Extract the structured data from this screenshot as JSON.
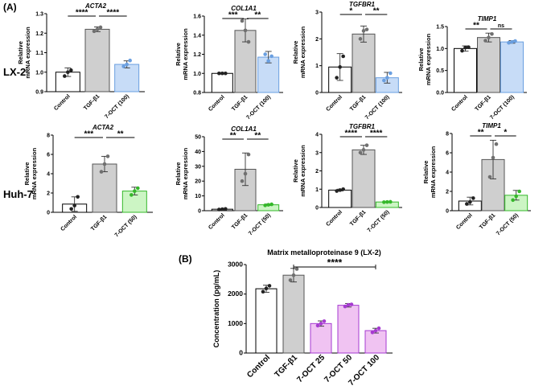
{
  "colors": {
    "control": "#ffffff",
    "tgf": "#cfcfcf",
    "lx2_treat": "#c7dcf7",
    "lx2_treat_edge": "#6a9fe0",
    "huh7_treat": "#ccf5c4",
    "huh7_treat_edge": "#35b82a",
    "mmp_treat": "#f0c3f2",
    "mmp_treat_edge": "#a63bd1",
    "point_ctrl": "#222222",
    "point_tgf": "#707070"
  },
  "labels": {
    "panel_a": "(A)",
    "panel_b": "(B)",
    "row_lx2": "LX-2",
    "row_huh7": "Huh-7",
    "ylabel_rel_line1": "Relative",
    "ylabel_rel_line2": "mRNA expression"
  },
  "chart_data": [
    {
      "id": "lx2-acta2",
      "type": "bar",
      "title": "ACTA2",
      "categories": [
        "Control",
        "TGF-β1",
        "7-OCT (100)"
      ],
      "values": [
        1.0,
        1.22,
        1.04
      ],
      "errors": [
        0.022,
        0.012,
        0.018
      ],
      "points": [
        [
          0.98,
          1.0,
          1.01
        ],
        [
          1.21,
          1.22,
          1.23
        ],
        [
          1.03,
          1.04,
          1.06
        ]
      ],
      "ylim": [
        0.9,
        1.3
      ],
      "yticks": [
        0.9,
        1.0,
        1.1,
        1.2,
        1.3
      ],
      "ylabel": "Relative mRNA expression",
      "sig": [
        {
          "from": 0,
          "to": 1,
          "label": "****"
        },
        {
          "from": 1,
          "to": 2,
          "label": "****"
        }
      ]
    },
    {
      "id": "lx2-col1a1",
      "type": "bar",
      "title": "COL1A1",
      "categories": [
        "Control",
        "TGF-β1",
        "7-OCT (100)"
      ],
      "values": [
        1.0,
        1.45,
        1.17
      ],
      "errors": [
        0.005,
        0.12,
        0.06
      ],
      "points": [
        [
          1.0,
          1.0,
          1.0
        ],
        [
          1.55,
          1.45,
          1.33
        ],
        [
          1.2,
          1.13,
          1.18
        ]
      ],
      "ylim": [
        0.8,
        1.6
      ],
      "yticks": [
        0.8,
        1.0,
        1.2,
        1.4,
        1.6
      ],
      "ylabel": "Relative mRNA expression",
      "sig": [
        {
          "from": 0,
          "to": 1,
          "label": "***"
        },
        {
          "from": 1,
          "to": 2,
          "label": "**"
        }
      ]
    },
    {
      "id": "lx2-tgfbr1",
      "type": "bar",
      "title": "TGFBR1",
      "categories": [
        "Control",
        "TGF-β1",
        "7-OCT (100)"
      ],
      "values": [
        0.95,
        2.18,
        0.55
      ],
      "errors": [
        0.5,
        0.3,
        0.2
      ],
      "points": [
        [
          0.55,
          0.95,
          1.35
        ],
        [
          2.0,
          2.3,
          2.35
        ],
        [
          0.45,
          0.55,
          0.72
        ]
      ],
      "ylim": [
        0,
        3
      ],
      "yticks": [
        0,
        1,
        2,
        3
      ],
      "ylabel": "Relative mRNA expression",
      "sig": [
        {
          "from": 0,
          "to": 1,
          "label": "*"
        },
        {
          "from": 1,
          "to": 2,
          "label": "**"
        }
      ]
    },
    {
      "id": "lx2-timp1",
      "type": "bar",
      "title": "TIMP1",
      "categories": [
        "Control",
        "TGF-β1",
        "7-OCT (100)"
      ],
      "values": [
        1.0,
        1.25,
        1.15
      ],
      "errors": [
        0.06,
        0.1,
        0.03
      ],
      "points": [
        [
          0.95,
          1.02,
          1.03
        ],
        [
          1.18,
          1.25,
          1.33
        ],
        [
          1.13,
          1.15,
          1.17
        ]
      ],
      "ylim": [
        0,
        1.5
      ],
      "yticks": [
        0,
        0.5,
        1.0,
        1.5
      ],
      "ylabel": "Relative mRNA expression",
      "sig": [
        {
          "from": 0,
          "to": 1,
          "label": "**"
        },
        {
          "from": 1,
          "to": 2,
          "label": "ns"
        }
      ]
    },
    {
      "id": "huh7-acta2",
      "type": "bar",
      "title": "ACTA2",
      "categories": [
        "Control",
        "TGF-β1",
        "7-OCT (50)"
      ],
      "values": [
        0.85,
        5.0,
        2.2
      ],
      "errors": [
        0.75,
        0.8,
        0.4
      ],
      "points": [
        [
          0.35,
          0.7,
          1.6
        ],
        [
          4.2,
          5.0,
          5.8
        ],
        [
          1.8,
          2.2,
          2.5
        ]
      ],
      "ylim": [
        0,
        8
      ],
      "yticks": [
        0,
        2,
        4,
        6,
        8
      ],
      "ylabel": "Relative mRNA expression",
      "sig": [
        {
          "from": 0,
          "to": 1,
          "label": "***"
        },
        {
          "from": 1,
          "to": 2,
          "label": "**"
        }
      ]
    },
    {
      "id": "huh7-col1a1",
      "type": "bar",
      "title": "COL1A1",
      "categories": [
        "Control",
        "TGF-β1",
        "7-OCT (50)"
      ],
      "values": [
        1.0,
        28.0,
        4.0
      ],
      "errors": [
        0.3,
        11.0,
        0.5
      ],
      "points": [
        [
          0.8,
          1.0,
          1.2
        ],
        [
          20.0,
          25.0,
          38.0
        ],
        [
          3.6,
          4.0,
          4.3
        ]
      ],
      "ylim": [
        0,
        50
      ],
      "yticks": [
        0,
        10,
        20,
        30,
        40,
        50
      ],
      "ylabel": "Relative mRNA expression",
      "sig": [
        {
          "from": 0,
          "to": 1,
          "label": "**"
        },
        {
          "from": 1,
          "to": 2,
          "label": "**"
        }
      ]
    },
    {
      "id": "huh7-tgfbr1",
      "type": "bar",
      "title": "TGFBR1",
      "categories": [
        "Control",
        "TGF-β1",
        "7-OCT (50)"
      ],
      "values": [
        0.95,
        3.15,
        0.3
      ],
      "errors": [
        0.05,
        0.25,
        0.02
      ],
      "points": [
        [
          0.9,
          0.95,
          1.0
        ],
        [
          3.0,
          3.15,
          3.4
        ],
        [
          0.29,
          0.3,
          0.31
        ]
      ],
      "ylim": [
        0,
        4
      ],
      "yticks": [
        0,
        1,
        2,
        3,
        4
      ],
      "ylabel": "Relative mRNA expression",
      "sig": [
        {
          "from": 0,
          "to": 1,
          "label": "****"
        },
        {
          "from": 1,
          "to": 2,
          "label": "****"
        }
      ]
    },
    {
      "id": "huh7-timp1",
      "type": "bar",
      "title": "TIMP1",
      "categories": [
        "Control",
        "TGF-β1",
        "7-OCT (50)"
      ],
      "values": [
        1.0,
        5.3,
        1.6
      ],
      "errors": [
        0.4,
        2.0,
        0.5
      ],
      "points": [
        [
          0.7,
          0.9,
          1.3
        ],
        [
          3.5,
          5.5,
          6.9
        ],
        [
          1.1,
          1.5,
          2.0
        ]
      ],
      "ylim": [
        0,
        8
      ],
      "yticks": [
        0,
        2,
        4,
        6,
        8
      ],
      "ylabel": "Relative mRNA expression",
      "sig": [
        {
          "from": 0,
          "to": 1,
          "label": "**"
        },
        {
          "from": 1,
          "to": 2,
          "label": "*"
        }
      ]
    },
    {
      "id": "mmp9",
      "type": "bar",
      "title": "Matrix metalloproteinase 9 (LX-2)",
      "categories": [
        "Control",
        "TGF-β1",
        "7-OCT 25",
        "7-OCT 50",
        "7-OCT 100"
      ],
      "values": [
        2180,
        2640,
        1000,
        1620,
        760
      ],
      "errors": [
        120,
        230,
        90,
        60,
        80
      ],
      "points": [
        [
          2080,
          2190,
          2280
        ],
        [
          2470,
          2640,
          2850
        ],
        [
          930,
          1000,
          1080
        ],
        [
          1580,
          1630,
          1650
        ],
        [
          700,
          760,
          840
        ]
      ],
      "ylim": [
        0,
        3000
      ],
      "yticks": [
        0,
        1000,
        2000,
        3000
      ],
      "ylabel": "Concentration (pg/mL)",
      "sig": [
        {
          "from": 1,
          "to": 4,
          "label": "****"
        }
      ]
    }
  ]
}
